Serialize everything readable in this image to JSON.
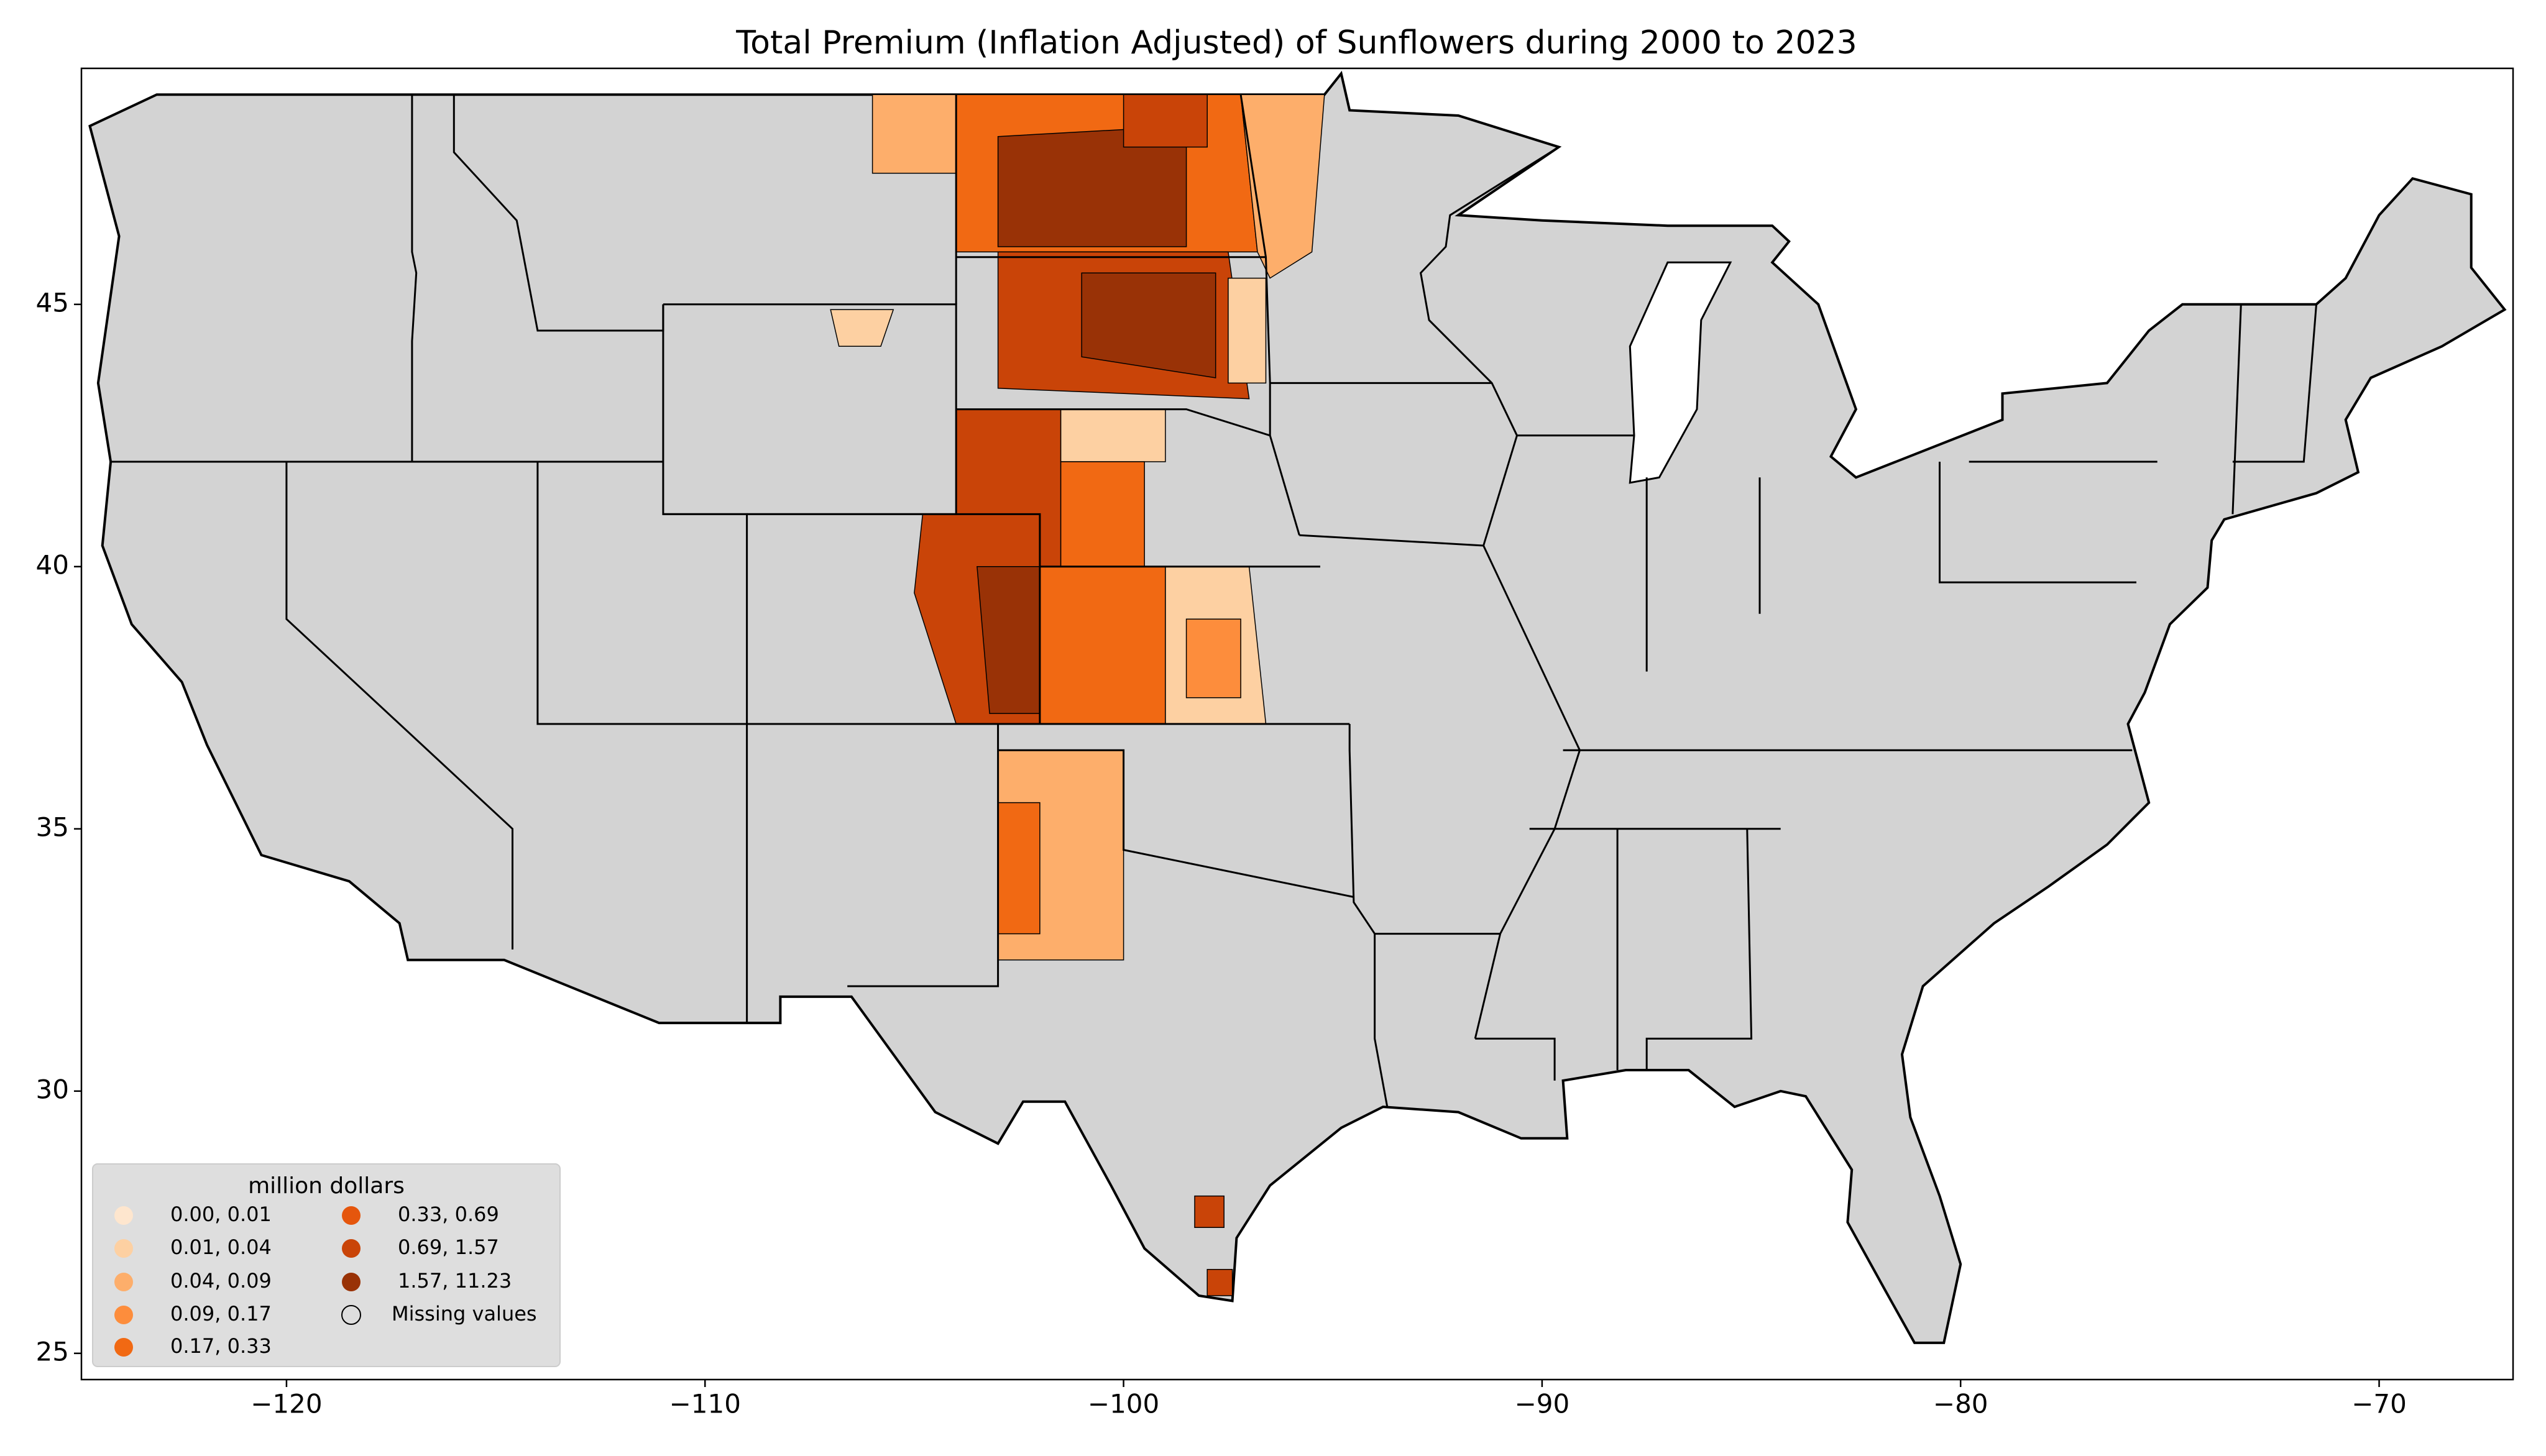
{
  "chart_data": {
    "type": "map",
    "title": "Total  Premium  (Inflation Adjusted) of Sunflowers during 2000 to 2023",
    "xlim": [
      -124.9,
      -66.8
    ],
    "ylim": [
      24.5,
      49.5
    ],
    "xticks": [
      {
        "value": -120,
        "label": "−120"
      },
      {
        "value": -110,
        "label": "−110"
      },
      {
        "value": -100,
        "label": "−100"
      },
      {
        "value": -90,
        "label": "−90"
      },
      {
        "value": -80,
        "label": "−80"
      },
      {
        "value": -70,
        "label": "−70"
      }
    ],
    "yticks": [
      25,
      30,
      35,
      40,
      45
    ],
    "legend": {
      "title": "million dollars",
      "items": [
        {
          "label": "0.00,  0.01",
          "color": "#fee6ce"
        },
        {
          "label": "0.01,  0.04",
          "color": "#fdd0a2"
        },
        {
          "label": "0.04,  0.09",
          "color": "#fdae6b"
        },
        {
          "label": "0.09,  0.17",
          "color": "#fd8d3c"
        },
        {
          "label": "0.17,  0.33",
          "color": "#f16913"
        },
        {
          "label": "0.33,  0.69",
          "color": "#e5560d"
        },
        {
          "label": "0.69,  1.57",
          "color": "#c94408"
        },
        {
          "label": "1.57, 11.23",
          "color": "#993206"
        }
      ],
      "missing": "Missing values"
    },
    "missing_color": "#d3d3d3"
  }
}
